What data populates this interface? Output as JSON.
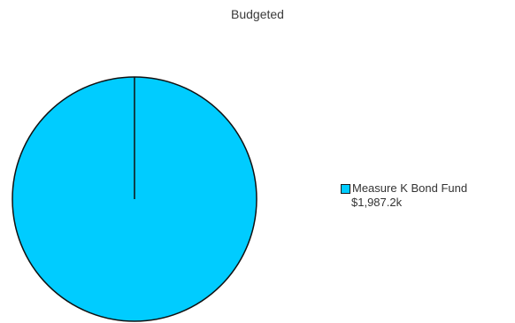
{
  "chart_data": {
    "type": "pie",
    "title": "Budgeted",
    "slices": [
      {
        "label": "Measure K Bond Fund",
        "value": 1987.2,
        "display_value": "$1,987.2k",
        "color": "#00CCFF"
      }
    ],
    "legend_position": "right",
    "outline_color": "#111111"
  }
}
